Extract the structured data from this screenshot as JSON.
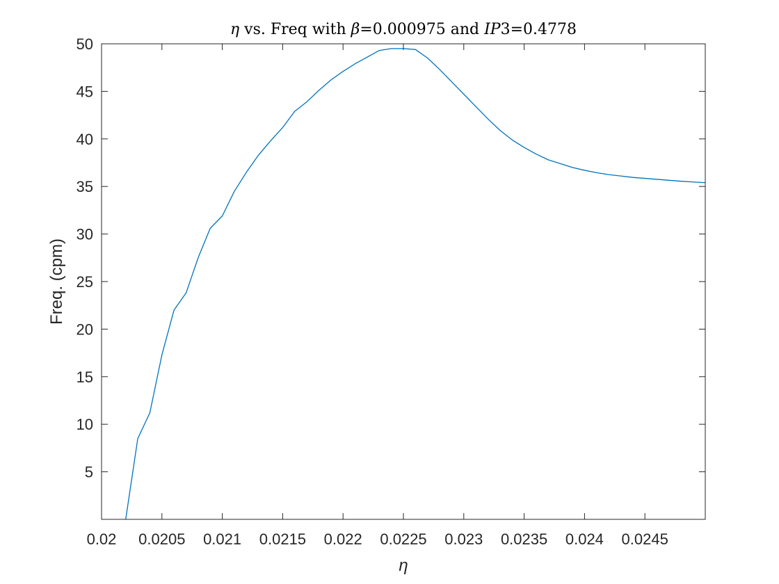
{
  "chart_data": {
    "type": "line",
    "title": {
      "eta": "η",
      "part1": " vs. Freq with ",
      "beta": "β",
      "part2": "=0.000975 and ",
      "ip": "IP",
      "part3": "3=0.4778"
    },
    "xlabel": "η",
    "ylabel": "Freq. (cpm)",
    "xlim": [
      0.02,
      0.025
    ],
    "ylim": [
      0,
      50
    ],
    "xticks": [
      0.02,
      0.0205,
      0.021,
      0.0215,
      0.022,
      0.0225,
      0.023,
      0.0235,
      0.024,
      0.0245
    ],
    "xtick_labels": [
      "0.02",
      "0.0205",
      "0.021",
      "0.0215",
      "0.022",
      "0.0225",
      "0.023",
      "0.0235",
      "0.024",
      "0.0245"
    ],
    "yticks": [
      5,
      10,
      15,
      20,
      25,
      30,
      35,
      40,
      45,
      50
    ],
    "ytick_labels": [
      "5",
      "10",
      "15",
      "20",
      "25",
      "30",
      "35",
      "40",
      "45",
      "50"
    ],
    "grid": false,
    "color": "#0072BD",
    "series": [
      {
        "x": [
          0.0202,
          0.0203,
          0.0204,
          0.0205,
          0.0206,
          0.0207,
          0.0208,
          0.0209,
          0.021,
          0.0211,
          0.0212,
          0.0213,
          0.0214,
          0.0215,
          0.0216,
          0.0217,
          0.0218,
          0.0219,
          0.022,
          0.0221,
          0.0222,
          0.0223,
          0.0224,
          0.0225,
          0.0226,
          0.0227,
          0.0228,
          0.0229,
          0.023,
          0.0231,
          0.0232,
          0.0233,
          0.0234,
          0.0235,
          0.0236,
          0.0237,
          0.0238,
          0.0239,
          0.024,
          0.0241,
          0.0242,
          0.0243,
          0.0244,
          0.0245,
          0.0246,
          0.0247,
          0.0248,
          0.0249,
          0.025
        ],
        "y": [
          0.0,
          8.5,
          11.2,
          17.3,
          22.0,
          23.8,
          27.5,
          30.6,
          31.9,
          34.5,
          36.5,
          38.3,
          39.8,
          41.2,
          42.9,
          43.9,
          45.1,
          46.2,
          47.1,
          47.9,
          48.6,
          49.3,
          49.5,
          49.5,
          49.4,
          48.5,
          47.3,
          46.0,
          44.7,
          43.4,
          42.1,
          40.9,
          39.9,
          39.1,
          38.4,
          37.8,
          37.4,
          37.0,
          36.7,
          36.45,
          36.25,
          36.1,
          35.95,
          35.85,
          35.75,
          35.65,
          35.55,
          35.47,
          35.4
        ]
      }
    ]
  }
}
